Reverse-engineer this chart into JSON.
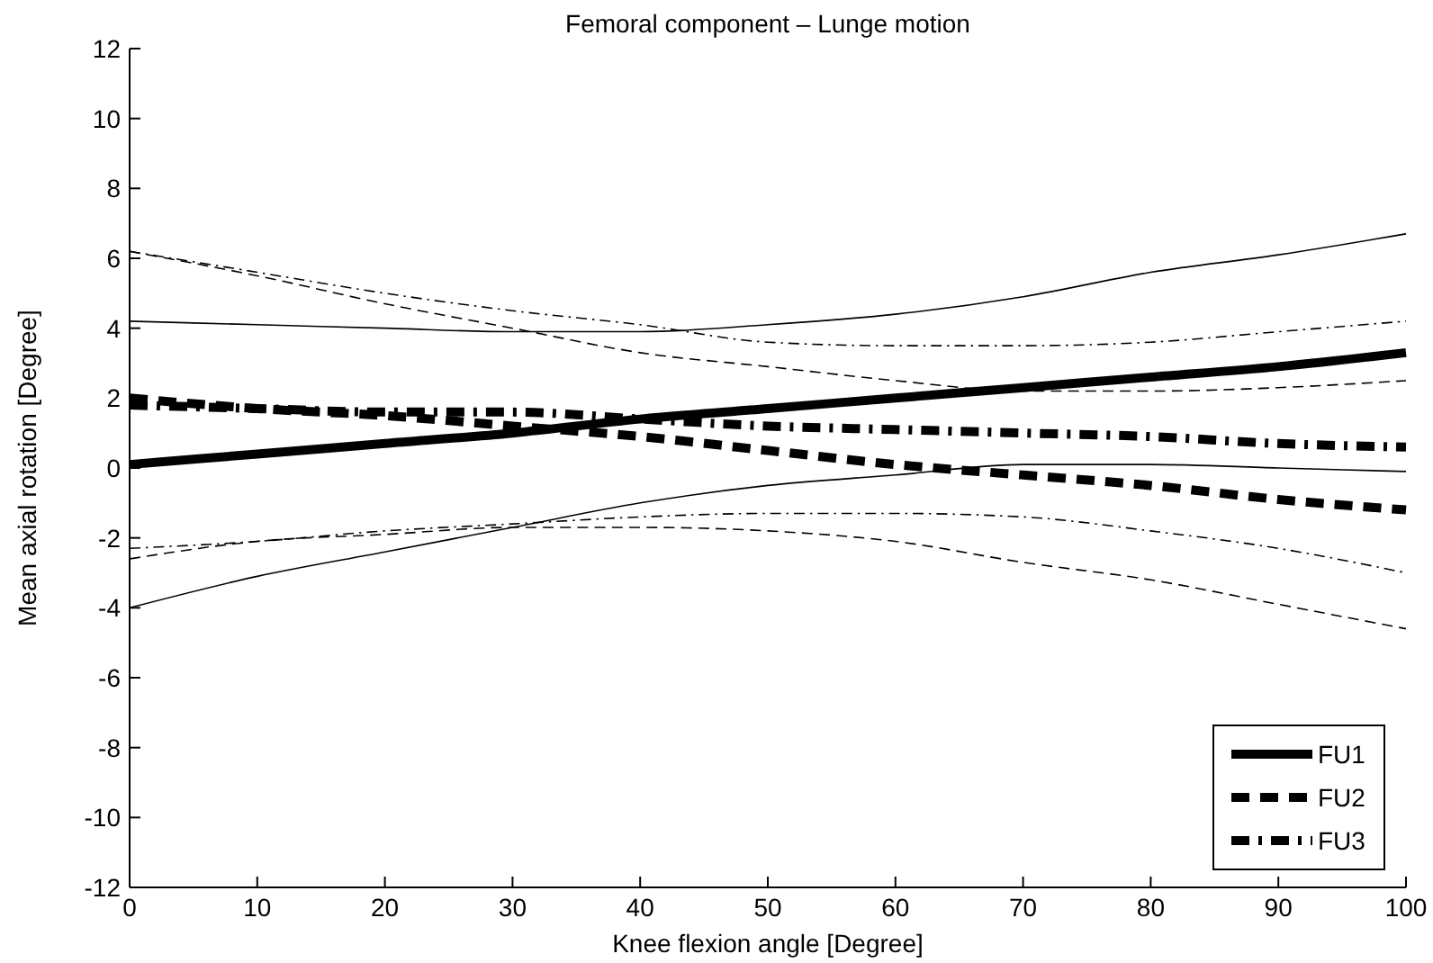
{
  "chart_data": {
    "type": "line",
    "title": "Femoral component – Lunge motion",
    "xlabel": "Knee flexion angle [Degree]",
    "ylabel": "Mean axial rotation [Degree]",
    "x": [
      0,
      10,
      20,
      30,
      40,
      50,
      60,
      70,
      80,
      90,
      100
    ],
    "xlim": [
      0,
      100
    ],
    "xticks": [
      0,
      10,
      20,
      30,
      40,
      50,
      60,
      70,
      80,
      90,
      100
    ],
    "ylim": [
      -12,
      12
    ],
    "yticks": [
      -12,
      -10,
      -8,
      -6,
      -4,
      -2,
      0,
      2,
      4,
      6,
      8,
      10,
      12
    ],
    "grid": false,
    "legend": "bottom right",
    "marker": "none",
    "series": [
      {
        "name": "FU1",
        "color": "#000000",
        "line_style": "solid",
        "values": [
          0.1,
          0.4,
          0.7,
          1.0,
          1.4,
          1.7,
          2.0,
          2.3,
          2.6,
          2.9,
          3.3
        ]
      },
      {
        "name": "FU2",
        "color": "#000000",
        "line_style": "dashed",
        "values": [
          2.0,
          1.7,
          1.5,
          1.2,
          0.9,
          0.5,
          0.1,
          -0.2,
          -0.5,
          -0.9,
          -1.2
        ]
      },
      {
        "name": "FU3",
        "color": "#000000",
        "line_style": "dashdot",
        "values": [
          1.8,
          1.7,
          1.6,
          1.6,
          1.4,
          1.2,
          1.1,
          1.0,
          0.9,
          0.7,
          0.6
        ]
      },
      {
        "color": "#000000",
        "line_style": "solid",
        "values": [
          4.2,
          4.1,
          4.0,
          3.9,
          3.9,
          4.1,
          4.4,
          4.9,
          5.6,
          6.1,
          6.7
        ]
      },
      {
        "color": "#000000",
        "line_style": "solid",
        "values": [
          -4.0,
          -3.1,
          -2.4,
          -1.7,
          -1.0,
          -0.5,
          -0.2,
          0.1,
          0.1,
          0.0,
          -0.1
        ]
      },
      {
        "color": "#000000",
        "line_style": "dashed",
        "values": [
          6.2,
          5.5,
          4.7,
          4.0,
          3.3,
          2.9,
          2.5,
          2.2,
          2.2,
          2.3,
          2.5
        ]
      },
      {
        "color": "#000000",
        "line_style": "dashed",
        "values": [
          -2.6,
          -2.1,
          -1.9,
          -1.7,
          -1.7,
          -1.8,
          -2.1,
          -2.7,
          -3.2,
          -3.9,
          -4.6
        ]
      },
      {
        "color": "#000000",
        "line_style": "dashdot",
        "values": [
          6.2,
          5.6,
          5.0,
          4.5,
          4.1,
          3.6,
          3.5,
          3.5,
          3.6,
          3.9,
          4.2
        ]
      },
      {
        "color": "#000000",
        "line_style": "dashdot",
        "values": [
          -2.3,
          -2.1,
          -1.8,
          -1.6,
          -1.4,
          -1.3,
          -1.3,
          -1.4,
          -1.8,
          -2.3,
          -3.0
        ]
      }
    ]
  }
}
